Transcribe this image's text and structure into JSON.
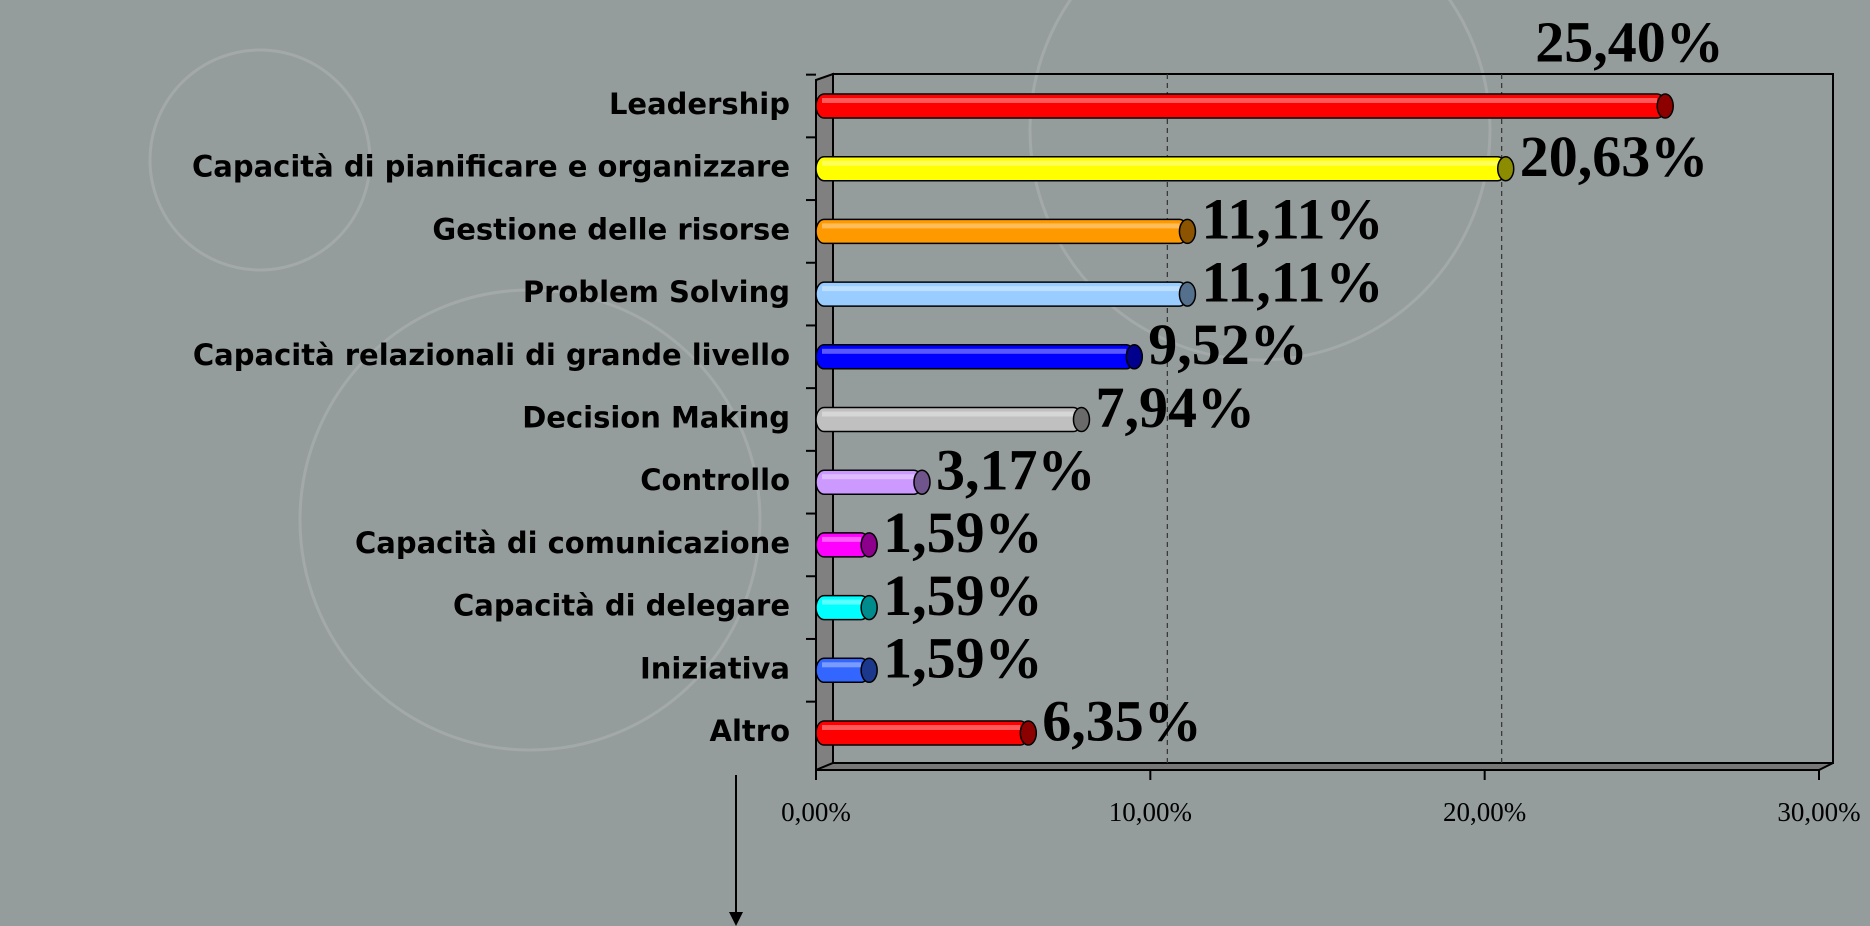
{
  "chart_data": {
    "type": "bar",
    "categories": [
      "Leadership",
      "Capacità di pianificare e organizzare",
      "Gestione delle risorse",
      "Problem Solving",
      "Capacità relazionali di grande livello",
      "Decision Making",
      "Controllo",
      "Capacità di comunicazione",
      "Capacità di delegare",
      "Iniziativa",
      "Altro"
    ],
    "values": [
      25.4,
      20.63,
      11.11,
      11.11,
      9.52,
      7.94,
      3.17,
      1.59,
      1.59,
      1.59,
      6.35
    ],
    "value_labels": [
      "25,40%",
      "20,63%",
      "11,11%",
      "11,11%",
      "9,52%",
      "7,94%",
      "3,17%",
      "1,59%",
      "1,59%",
      "1,59%",
      "6,35%"
    ],
    "colors": [
      "#ff0000",
      "#ffff00",
      "#ff9900",
      "#99ccff",
      "#0000ff",
      "#c0c0c0",
      "#cc99ff",
      "#ff00ff",
      "#00ffff",
      "#3366ff",
      "#ff0000"
    ],
    "xlim": [
      0,
      30
    ],
    "xticks": [
      {
        "value": 0,
        "label": "0,00%"
      },
      {
        "value": 10,
        "label": "10,00%"
      },
      {
        "value": 20,
        "label": "20,00%"
      },
      {
        "value": 30,
        "label": "30,00%"
      }
    ],
    "grid": true
  }
}
